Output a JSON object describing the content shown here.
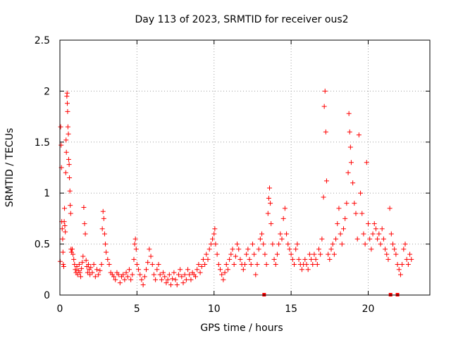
{
  "chart_data": {
    "type": "scatter",
    "title": "Day 113 of 2023, SRMTID for receiver ous2",
    "xlabel": "GPS time / hours",
    "ylabel": "SRMTID / TECUs",
    "xlim": [
      0,
      24
    ],
    "ylim": [
      0,
      2.5
    ],
    "xticks": [
      0,
      5,
      10,
      15,
      20
    ],
    "yticks": [
      0,
      0.5,
      1,
      1.5,
      2,
      2.5
    ],
    "xtick_labels": [
      "0",
      "5",
      "10",
      "15",
      "20"
    ],
    "ytick_labels": [
      "0",
      "0.5",
      "1",
      "1.5",
      "2",
      "2.5"
    ],
    "grid": true,
    "marker": "plus",
    "series_color": "#ff0000",
    "baseline_marks_x": [
      13.25,
      21.45,
      21.9
    ],
    "series": [
      {
        "name": "SRMTID",
        "points": [
          [
            0.02,
            0.33
          ],
          [
            0.05,
            1.65
          ],
          [
            0.08,
            1.47
          ],
          [
            0.1,
            1.25
          ],
          [
            0.12,
            0.72
          ],
          [
            0.15,
            0.65
          ],
          [
            0.18,
            0.55
          ],
          [
            0.2,
            0.42
          ],
          [
            0.22,
            0.3
          ],
          [
            0.25,
            0.28
          ],
          [
            0.28,
            0.72
          ],
          [
            0.3,
            0.85
          ],
          [
            0.32,
            0.68
          ],
          [
            0.35,
            0.62
          ],
          [
            0.38,
            1.2
          ],
          [
            0.4,
            1.52
          ],
          [
            0.42,
            1.4
          ],
          [
            0.45,
            1.95
          ],
          [
            0.47,
            1.98
          ],
          [
            0.48,
            1.88
          ],
          [
            0.5,
            1.8
          ],
          [
            0.52,
            1.65
          ],
          [
            0.55,
            1.58
          ],
          [
            0.57,
            1.33
          ],
          [
            0.6,
            1.28
          ],
          [
            0.62,
            1.15
          ],
          [
            0.65,
            1.02
          ],
          [
            0.67,
            0.88
          ],
          [
            0.7,
            0.8
          ],
          [
            0.72,
            0.45
          ],
          [
            0.75,
            0.42
          ],
          [
            0.8,
            0.45
          ],
          [
            0.85,
            0.4
          ],
          [
            0.9,
            0.35
          ],
          [
            0.95,
            0.3
          ],
          [
            1.0,
            0.25
          ],
          [
            1.05,
            0.22
          ],
          [
            1.1,
            0.28
          ],
          [
            1.15,
            0.2
          ],
          [
            1.2,
            0.24
          ],
          [
            1.25,
            0.3
          ],
          [
            1.3,
            0.22
          ],
          [
            1.35,
            0.18
          ],
          [
            1.4,
            0.26
          ],
          [
            1.45,
            0.32
          ],
          [
            1.5,
            0.38
          ],
          [
            1.55,
            0.86
          ],
          [
            1.6,
            0.7
          ],
          [
            1.65,
            0.6
          ],
          [
            1.7,
            0.34
          ],
          [
            1.75,
            0.28
          ],
          [
            1.8,
            0.22
          ],
          [
            1.85,
            0.3
          ],
          [
            1.9,
            0.25
          ],
          [
            1.95,
            0.2
          ],
          [
            2.0,
            0.27
          ],
          [
            2.1,
            0.22
          ],
          [
            2.2,
            0.3
          ],
          [
            2.3,
            0.18
          ],
          [
            2.4,
            0.25
          ],
          [
            2.5,
            0.2
          ],
          [
            2.6,
            0.24
          ],
          [
            2.7,
            0.3
          ],
          [
            2.75,
            0.65
          ],
          [
            2.8,
            0.82
          ],
          [
            2.85,
            0.75
          ],
          [
            2.9,
            0.6
          ],
          [
            2.95,
            0.5
          ],
          [
            3.0,
            0.42
          ],
          [
            3.1,
            0.35
          ],
          [
            3.2,
            0.3
          ],
          [
            3.3,
            0.22
          ],
          [
            3.4,
            0.2
          ],
          [
            3.5,
            0.18
          ],
          [
            3.6,
            0.15
          ],
          [
            3.7,
            0.22
          ],
          [
            3.8,
            0.2
          ],
          [
            3.9,
            0.12
          ],
          [
            4.0,
            0.18
          ],
          [
            4.1,
            0.2
          ],
          [
            4.2,
            0.15
          ],
          [
            4.3,
            0.22
          ],
          [
            4.4,
            0.18
          ],
          [
            4.5,
            0.25
          ],
          [
            4.6,
            0.15
          ],
          [
            4.7,
            0.2
          ],
          [
            4.8,
            0.35
          ],
          [
            4.85,
            0.5
          ],
          [
            4.9,
            0.55
          ],
          [
            4.95,
            0.45
          ],
          [
            5.0,
            0.3
          ],
          [
            5.1,
            0.25
          ],
          [
            5.2,
            0.2
          ],
          [
            5.3,
            0.15
          ],
          [
            5.4,
            0.1
          ],
          [
            5.5,
            0.18
          ],
          [
            5.6,
            0.25
          ],
          [
            5.7,
            0.32
          ],
          [
            5.8,
            0.45
          ],
          [
            5.9,
            0.38
          ],
          [
            6.0,
            0.3
          ],
          [
            6.1,
            0.2
          ],
          [
            6.2,
            0.15
          ],
          [
            6.3,
            0.25
          ],
          [
            6.4,
            0.3
          ],
          [
            6.5,
            0.2
          ],
          [
            6.6,
            0.15
          ],
          [
            6.7,
            0.22
          ],
          [
            6.8,
            0.18
          ],
          [
            6.9,
            0.12
          ],
          [
            7.0,
            0.15
          ],
          [
            7.1,
            0.2
          ],
          [
            7.2,
            0.1
          ],
          [
            7.3,
            0.16
          ],
          [
            7.4,
            0.22
          ],
          [
            7.5,
            0.15
          ],
          [
            7.6,
            0.1
          ],
          [
            7.7,
            0.2
          ],
          [
            7.8,
            0.25
          ],
          [
            7.9,
            0.18
          ],
          [
            8.0,
            0.12
          ],
          [
            8.1,
            0.2
          ],
          [
            8.2,
            0.15
          ],
          [
            8.3,
            0.25
          ],
          [
            8.4,
            0.2
          ],
          [
            8.5,
            0.15
          ],
          [
            8.6,
            0.22
          ],
          [
            8.7,
            0.2
          ],
          [
            8.8,
            0.18
          ],
          [
            8.9,
            0.25
          ],
          [
            9.0,
            0.3
          ],
          [
            9.1,
            0.22
          ],
          [
            9.2,
            0.28
          ],
          [
            9.3,
            0.35
          ],
          [
            9.4,
            0.3
          ],
          [
            9.5,
            0.4
          ],
          [
            9.6,
            0.35
          ],
          [
            9.7,
            0.45
          ],
          [
            9.8,
            0.5
          ],
          [
            9.9,
            0.55
          ],
          [
            10.0,
            0.6
          ],
          [
            10.05,
            0.65
          ],
          [
            10.1,
            0.5
          ],
          [
            10.2,
            0.4
          ],
          [
            10.3,
            0.3
          ],
          [
            10.4,
            0.25
          ],
          [
            10.5,
            0.2
          ],
          [
            10.6,
            0.15
          ],
          [
            10.7,
            0.22
          ],
          [
            10.8,
            0.3
          ],
          [
            10.9,
            0.25
          ],
          [
            11.0,
            0.35
          ],
          [
            11.1,
            0.4
          ],
          [
            11.2,
            0.45
          ],
          [
            11.3,
            0.3
          ],
          [
            11.4,
            0.38
          ],
          [
            11.5,
            0.5
          ],
          [
            11.6,
            0.45
          ],
          [
            11.7,
            0.35
          ],
          [
            11.8,
            0.3
          ],
          [
            11.9,
            0.25
          ],
          [
            12.0,
            0.3
          ],
          [
            12.1,
            0.4
          ],
          [
            12.2,
            0.45
          ],
          [
            12.3,
            0.35
          ],
          [
            12.4,
            0.3
          ],
          [
            12.5,
            0.5
          ],
          [
            12.6,
            0.4
          ],
          [
            12.7,
            0.2
          ],
          [
            12.8,
            0.3
          ],
          [
            12.9,
            0.45
          ],
          [
            13.0,
            0.55
          ],
          [
            13.1,
            0.6
          ],
          [
            13.2,
            0.5
          ],
          [
            13.3,
            0.4
          ],
          [
            13.4,
            0.3
          ],
          [
            13.5,
            0.8
          ],
          [
            13.55,
            0.95
          ],
          [
            13.6,
            1.05
          ],
          [
            13.65,
            0.9
          ],
          [
            13.7,
            0.7
          ],
          [
            13.8,
            0.5
          ],
          [
            13.9,
            0.35
          ],
          [
            14.0,
            0.3
          ],
          [
            14.1,
            0.4
          ],
          [
            14.2,
            0.5
          ],
          [
            14.3,
            0.6
          ],
          [
            14.4,
            0.55
          ],
          [
            14.5,
            0.75
          ],
          [
            14.6,
            0.85
          ],
          [
            14.7,
            0.6
          ],
          [
            14.8,
            0.5
          ],
          [
            14.9,
            0.45
          ],
          [
            15.0,
            0.4
          ],
          [
            15.1,
            0.35
          ],
          [
            15.2,
            0.3
          ],
          [
            15.3,
            0.45
          ],
          [
            15.4,
            0.5
          ],
          [
            15.5,
            0.35
          ],
          [
            15.6,
            0.3
          ],
          [
            15.7,
            0.25
          ],
          [
            15.8,
            0.3
          ],
          [
            15.9,
            0.35
          ],
          [
            16.0,
            0.3
          ],
          [
            16.1,
            0.25
          ],
          [
            16.2,
            0.4
          ],
          [
            16.3,
            0.35
          ],
          [
            16.4,
            0.3
          ],
          [
            16.5,
            0.4
          ],
          [
            16.6,
            0.35
          ],
          [
            16.7,
            0.3
          ],
          [
            16.8,
            0.45
          ],
          [
            16.9,
            0.4
          ],
          [
            17.0,
            0.55
          ],
          [
            17.1,
            0.96
          ],
          [
            17.15,
            1.85
          ],
          [
            17.2,
            2.0
          ],
          [
            17.25,
            1.6
          ],
          [
            17.3,
            1.12
          ],
          [
            17.4,
            0.4
          ],
          [
            17.5,
            0.35
          ],
          [
            17.6,
            0.45
          ],
          [
            17.7,
            0.5
          ],
          [
            17.8,
            0.4
          ],
          [
            17.9,
            0.55
          ],
          [
            18.0,
            0.7
          ],
          [
            18.1,
            0.85
          ],
          [
            18.2,
            0.6
          ],
          [
            18.3,
            0.5
          ],
          [
            18.4,
            0.65
          ],
          [
            18.5,
            0.75
          ],
          [
            18.6,
            0.9
          ],
          [
            18.7,
            1.2
          ],
          [
            18.75,
            1.78
          ],
          [
            18.8,
            1.6
          ],
          [
            18.85,
            1.45
          ],
          [
            18.9,
            1.3
          ],
          [
            19.0,
            1.1
          ],
          [
            19.1,
            0.9
          ],
          [
            19.2,
            0.8
          ],
          [
            19.3,
            0.55
          ],
          [
            19.4,
            1.57
          ],
          [
            19.5,
            1.0
          ],
          [
            19.6,
            0.8
          ],
          [
            19.7,
            0.6
          ],
          [
            19.8,
            0.5
          ],
          [
            19.9,
            1.3
          ],
          [
            20.0,
            0.7
          ],
          [
            20.1,
            0.55
          ],
          [
            20.2,
            0.45
          ],
          [
            20.3,
            0.6
          ],
          [
            20.4,
            0.7
          ],
          [
            20.5,
            0.65
          ],
          [
            20.6,
            0.55
          ],
          [
            20.7,
            0.6
          ],
          [
            20.8,
            0.5
          ],
          [
            20.9,
            0.65
          ],
          [
            21.0,
            0.55
          ],
          [
            21.1,
            0.45
          ],
          [
            21.2,
            0.4
          ],
          [
            21.3,
            0.35
          ],
          [
            21.4,
            0.85
          ],
          [
            21.5,
            0.6
          ],
          [
            21.6,
            0.5
          ],
          [
            21.7,
            0.45
          ],
          [
            21.8,
            0.4
          ],
          [
            21.9,
            0.3
          ],
          [
            22.0,
            0.25
          ],
          [
            22.1,
            0.2
          ],
          [
            22.2,
            0.3
          ],
          [
            22.3,
            0.45
          ],
          [
            22.4,
            0.5
          ],
          [
            22.5,
            0.35
          ],
          [
            22.6,
            0.3
          ],
          [
            22.7,
            0.4
          ],
          [
            22.8,
            0.35
          ]
        ]
      }
    ]
  }
}
